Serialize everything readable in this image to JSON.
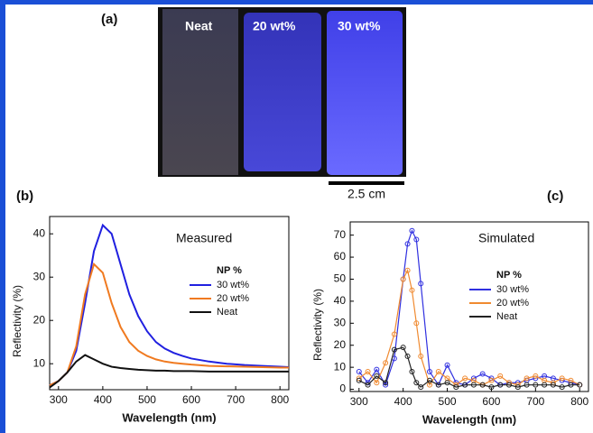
{
  "panel_a": {
    "label": "(a)",
    "samples": [
      "Neat",
      "20 wt%",
      "30 wt%"
    ],
    "scale_bar": "2.5 cm"
  },
  "chart_data": [
    {
      "type": "line",
      "panel_label": "(b)",
      "title": "Measured",
      "legend_title": "NP %",
      "x_label": "Wavelength (nm)",
      "y_label": "Reflectivity (%)",
      "x": [
        280,
        300,
        320,
        340,
        360,
        380,
        400,
        420,
        440,
        460,
        480,
        500,
        520,
        540,
        560,
        580,
        600,
        640,
        680,
        720,
        760,
        800,
        820
      ],
      "series": [
        {
          "name": "30 wt%",
          "color": "#2020e0",
          "values": [
            5,
            6,
            8,
            13,
            24,
            36,
            42,
            40,
            33,
            26,
            21,
            17.5,
            15,
            13.5,
            12.5,
            11.8,
            11.2,
            10.5,
            10,
            9.7,
            9.5,
            9.3,
            9.2
          ]
        },
        {
          "name": "20 wt%",
          "color": "#f07a20",
          "values": [
            5,
            6,
            8,
            14,
            26,
            33,
            31,
            24,
            18.5,
            15,
            13,
            11.8,
            11,
            10.5,
            10.2,
            10,
            9.8,
            9.5,
            9.4,
            9.3,
            9.2,
            9.1,
            9.1
          ]
        },
        {
          "name": "Neat",
          "color": "#111111",
          "values": [
            4.5,
            6,
            8,
            10.5,
            12,
            11,
            10,
            9.3,
            9,
            8.8,
            8.6,
            8.5,
            8.4,
            8.4,
            8.3,
            8.3,
            8.3,
            8.2,
            8.2,
            8.2,
            8.2,
            8.2,
            8.2
          ]
        }
      ],
      "xlim": [
        280,
        820
      ],
      "xticks": [
        300,
        400,
        500,
        600,
        700,
        800
      ],
      "ylim": [
        4,
        44
      ],
      "yticks": [
        10,
        20,
        30,
        40
      ]
    },
    {
      "type": "line",
      "panel_label": "(c)",
      "title": "Simulated",
      "legend_title": "NP %",
      "x_label": "Wavelength (nm)",
      "y_label": "Reflectivity (%)",
      "markers": true,
      "x": [
        300,
        320,
        340,
        360,
        380,
        400,
        410,
        420,
        430,
        440,
        460,
        480,
        500,
        520,
        540,
        560,
        580,
        600,
        620,
        640,
        660,
        680,
        700,
        720,
        740,
        760,
        780,
        800
      ],
      "series": [
        {
          "name": "30 wt%",
          "color": "#3030e0",
          "values": [
            8,
            3,
            9,
            2,
            14,
            50,
            66,
            72,
            68,
            48,
            8,
            2,
            11,
            3,
            2,
            5,
            7,
            5,
            2,
            3,
            3,
            4,
            5,
            6,
            5,
            4,
            3,
            2
          ]
        },
        {
          "name": "20 wt%",
          "color": "#f08a30",
          "values": [
            5,
            8,
            3,
            12,
            25,
            50,
            54,
            45,
            30,
            15,
            2,
            8,
            5,
            2,
            5,
            4,
            2,
            4,
            6,
            3,
            2,
            5,
            6,
            4,
            3,
            5,
            4,
            2
          ]
        },
        {
          "name": "Neat",
          "color": "#222222",
          "values": [
            4,
            2,
            6,
            3,
            18,
            19,
            15,
            8,
            3,
            1,
            4,
            2,
            3,
            1,
            2,
            2,
            2,
            1,
            2,
            2,
            1,
            2,
            2,
            2,
            2,
            1,
            2,
            2
          ]
        }
      ],
      "xlim": [
        280,
        820
      ],
      "xticks": [
        300,
        400,
        500,
        600,
        700,
        800
      ],
      "ylim": [
        -1,
        76
      ],
      "yticks": [
        0,
        10,
        20,
        30,
        40,
        50,
        60,
        70
      ]
    }
  ]
}
